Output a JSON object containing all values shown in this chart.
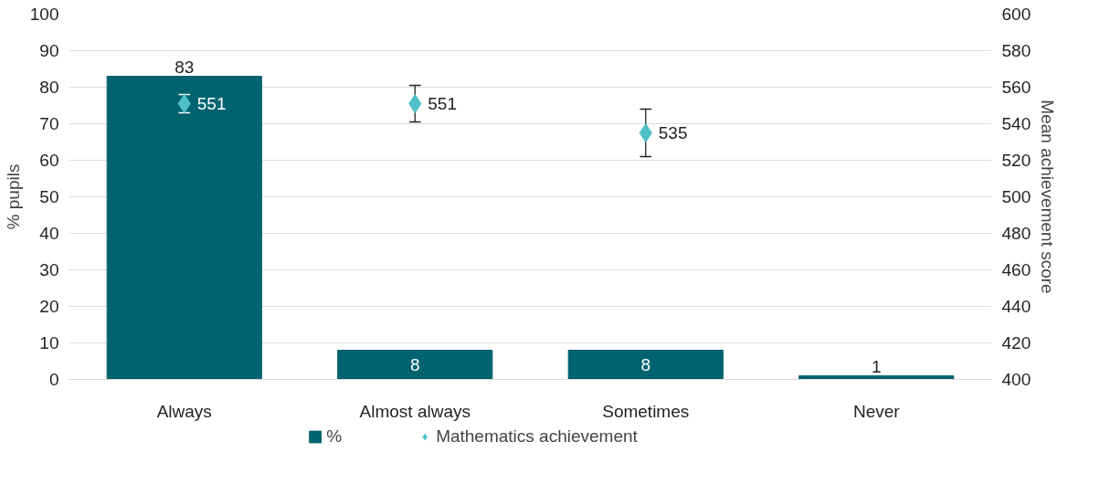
{
  "chart_data": {
    "type": "bar",
    "categories": [
      "Always",
      "Almost always",
      "Sometimes",
      "Never"
    ],
    "ylabel": "% pupils",
    "y2label": "Mean achievement score",
    "ylim": [
      0,
      100
    ],
    "yticks": [
      0,
      10,
      20,
      30,
      40,
      50,
      60,
      70,
      80,
      90,
      100
    ],
    "y2lim": [
      400,
      600
    ],
    "y2ticks": [
      400,
      420,
      440,
      460,
      480,
      500,
      520,
      540,
      560,
      580,
      600
    ],
    "grid": "y",
    "legend": "bottom",
    "data_labels": true,
    "series": [
      {
        "name": "%",
        "color": "#00636f",
        "values": [
          83,
          8,
          8,
          1
        ]
      },
      {
        "name": "Mathematics achievement",
        "type": "scatter",
        "axis": "y2",
        "marker": "diamond",
        "color": "#4fc1c6",
        "values": [
          551,
          551,
          535,
          null
        ],
        "errors": [
          5,
          10,
          13,
          null
        ]
      }
    ]
  }
}
